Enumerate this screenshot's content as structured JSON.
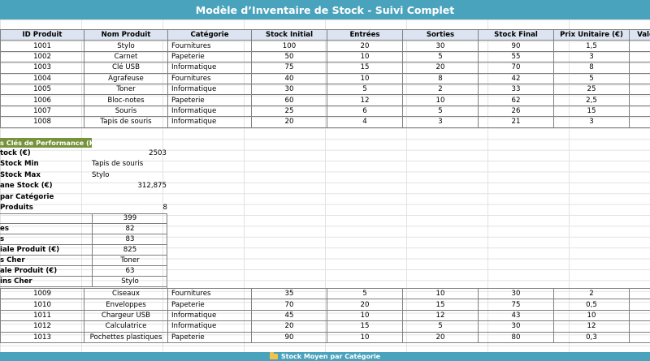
{
  "title": "Modèle d’Inventaire de Stock - Suivi Complet",
  "headers": [
    "ID Produit",
    "Nom Produit",
    "Catégorie",
    "Stock Initial",
    "Entrées",
    "Sorties",
    "Stock Final",
    "Prix Unitaire (€)",
    "Valeu"
  ],
  "rows_top": [
    [
      "1001",
      "Stylo",
      "Fournitures",
      "100",
      "20",
      "30",
      "90",
      "1,5"
    ],
    [
      "1002",
      "Carnet",
      "Papeterie",
      "50",
      "10",
      "5",
      "55",
      "3"
    ],
    [
      "1003",
      "Clé USB",
      "Informatique",
      "75",
      "15",
      "20",
      "70",
      "8"
    ],
    [
      "1004",
      "Agrafeuse",
      "Fournitures",
      "40",
      "10",
      "8",
      "42",
      "5"
    ],
    [
      "1005",
      "Toner",
      "Informatique",
      "30",
      "5",
      "2",
      "33",
      "25"
    ],
    [
      "1006",
      "Bloc-notes",
      "Papeterie",
      "60",
      "12",
      "10",
      "62",
      "2,5"
    ],
    [
      "1007",
      "Souris",
      "Informatique",
      "25",
      "6",
      "5",
      "26",
      "15"
    ],
    [
      "1008",
      "Tapis de souris",
      "Informatique",
      "20",
      "4",
      "3",
      "21",
      "3"
    ]
  ],
  "kpi": {
    "heading": "s Clés de Performance (KPI)",
    "items": [
      {
        "label": "tock (€)",
        "value": "2503",
        "align": "right"
      },
      {
        "label": "Stock Min",
        "value": "Tapis de souris",
        "align": "left"
      },
      {
        "label": "Stock Max",
        "value": "Stylo",
        "align": "left"
      },
      {
        "label": "ane Stock (€)",
        "value": "312,875",
        "align": "right"
      },
      {
        "label": "par Catégorie",
        "value": "",
        "align": "left"
      },
      {
        "label": " Produits",
        "value": "8",
        "align": "right"
      }
    ]
  },
  "box_rows": [
    {
      "label": "",
      "value": "399"
    },
    {
      "label": "es",
      "value": "82"
    },
    {
      "label": "s",
      "value": "83"
    },
    {
      "label": "iale Produit (€)",
      "value": "825"
    },
    {
      "label": "s Cher",
      "value": "Toner"
    },
    {
      "label": "ale Produit (€)",
      "value": "63"
    },
    {
      "label": "ins Cher",
      "value": "Stylo"
    }
  ],
  "rows_bottom": [
    [
      "1009",
      "Ciseaux",
      "Fournitures",
      "35",
      "5",
      "10",
      "30",
      "2"
    ],
    [
      "1010",
      "Enveloppes",
      "Papeterie",
      "70",
      "20",
      "15",
      "75",
      "0,5"
    ],
    [
      "1011",
      "Chargeur USB",
      "Informatique",
      "45",
      "10",
      "12",
      "43",
      "10"
    ],
    [
      "1012",
      "Calculatrice",
      "Informatique",
      "20",
      "15",
      "5",
      "30",
      "12"
    ],
    [
      "1013",
      "Pochettes plastiques",
      "Papeterie",
      "90",
      "10",
      "20",
      "80",
      "0,3"
    ]
  ],
  "bottom_bar": {
    "label": "Stock Moyen par Catégorie",
    "icon": "folder-icon"
  },
  "colors": {
    "title_bg": "#4aa3bc",
    "header_bg": "#dbe4f0",
    "kpi_bg": "#76933c"
  }
}
